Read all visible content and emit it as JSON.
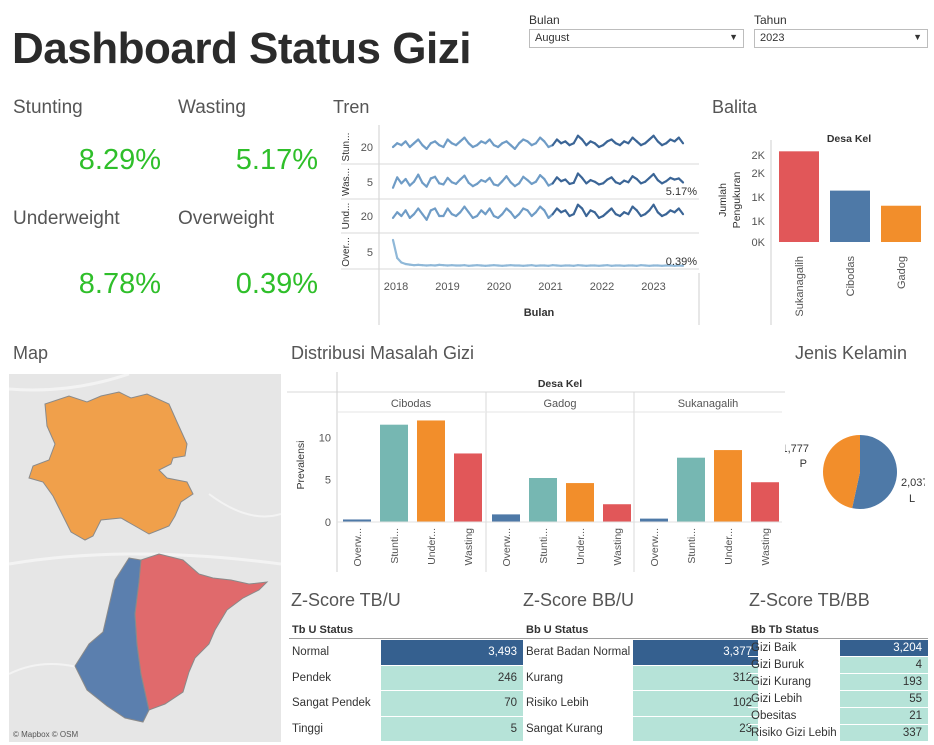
{
  "title": "Dashboard Status Gizi",
  "filters": {
    "bulan_label": "Bulan",
    "bulan_value": "August",
    "tahun_label": "Tahun",
    "tahun_value": "2023"
  },
  "kpis": {
    "stunting_label": "Stunting",
    "stunting_value": "8.29%",
    "wasting_label": "Wasting",
    "wasting_value": "5.17%",
    "underweight_label": "Underweight",
    "underweight_value": "8.78%",
    "overweight_label": "Overweight",
    "overweight_value": "0.39%"
  },
  "colors": {
    "kpi_green": "#2fbf2a",
    "cibodas_blue": "#4e79a7",
    "gadog_orange": "#f28e2b",
    "sukanagalih_red": "#e15759",
    "teal": "#76b7b2",
    "table_dark": "#35608f",
    "table_light": "#b6e3d8"
  },
  "tren": {
    "title": "Tren",
    "rows": [
      {
        "label": "Stun...",
        "tick": "20",
        "end_label": ""
      },
      {
        "label": "Was...",
        "tick": "5",
        "end_label": "5.17%"
      },
      {
        "label": "Und...",
        "tick": "20",
        "end_label": ""
      },
      {
        "label": "Over...",
        "tick": "5",
        "end_label": "0.39%"
      }
    ],
    "x_ticks": [
      "2018",
      "2019",
      "2020",
      "2021",
      "2022",
      "2023"
    ],
    "xlabel": "Bulan"
  },
  "balita": {
    "title": "Balita",
    "header": "Desa Kel",
    "ylabel_1": "Jumlah",
    "ylabel_2": "Pengukuran",
    "y_ticks": [
      "2K",
      "2K",
      "1K",
      "1K",
      "0K"
    ]
  },
  "map": {
    "title": "Map",
    "attribution": "© Mapbox  © OSM"
  },
  "distribusi": {
    "title": "Distribusi Masalah Gizi",
    "header": "Desa Kel",
    "ylabel": "Prevalensi",
    "y_ticks": [
      "10",
      "5",
      "0"
    ],
    "panels": [
      "Cibodas",
      "Gadog",
      "Sukanagalih"
    ],
    "x_labels": [
      "Overw...",
      "Stunti...",
      "Under...",
      "Wasting"
    ]
  },
  "jenis_kelamin": {
    "title": "Jenis Kelamin",
    "p_value": "1,777",
    "p_label": "P",
    "l_value": "2,037",
    "l_label": "L"
  },
  "chart_data": [
    {
      "type": "line",
      "title": "Tren",
      "xlabel": "Bulan",
      "x_range": [
        "2018",
        "2023"
      ],
      "series": [
        {
          "name": "Stun...",
          "values": [
            18,
            20,
            19,
            21,
            18,
            20,
            22,
            19,
            17,
            20,
            21,
            19,
            18,
            22,
            20,
            19,
            21,
            23,
            20,
            18,
            19,
            21,
            20,
            22,
            19,
            18,
            20,
            21,
            19,
            17,
            20,
            22,
            21,
            19,
            20,
            23,
            21,
            18,
            19,
            22,
            20,
            21,
            19,
            20,
            24,
            22,
            19,
            21,
            20,
            18,
            19,
            21,
            22,
            20,
            19,
            21,
            20,
            23,
            21,
            19,
            20,
            22,
            24,
            21,
            19,
            20,
            22,
            21,
            23,
            20
          ]
        },
        {
          "name": "Was...",
          "values": [
            4.2,
            6.1,
            5.0,
            5.8,
            4.6,
            5.3,
            6.6,
            5.1,
            4.4,
            5.9,
            6.2,
            5.0,
            4.8,
            6.0,
            5.2,
            4.9,
            5.7,
            6.4,
            5.1,
            4.5,
            4.9,
            5.6,
            5.3,
            6.0,
            4.8,
            4.6,
            5.4,
            6.3,
            5.2,
            4.5,
            5.0,
            6.2,
            5.6,
            4.9,
            5.3,
            6.5,
            5.8,
            4.6,
            5.0,
            6.1,
            5.4,
            5.7,
            4.9,
            5.1,
            6.8,
            6.0,
            5.0,
            5.6,
            5.3,
            4.8,
            5.0,
            5.7,
            6.1,
            5.2,
            4.9,
            5.5,
            5.2,
            6.3,
            5.8,
            5.0,
            5.3,
            6.0,
            6.7,
            5.6,
            5.0,
            5.4,
            6.0,
            5.7,
            5.9,
            5.17
          ]
        },
        {
          "name": "Und...",
          "values": [
            17,
            20,
            18,
            21,
            17,
            19,
            22,
            19,
            16,
            21,
            22,
            18,
            18,
            22,
            19,
            18,
            20,
            23,
            20,
            17,
            18,
            21,
            19,
            22,
            18,
            17,
            19,
            22,
            20,
            17,
            19,
            22,
            21,
            18,
            20,
            23,
            21,
            17,
            19,
            22,
            20,
            21,
            18,
            19,
            24,
            22,
            18,
            21,
            20,
            17,
            18,
            20,
            22,
            19,
            18,
            20,
            19,
            23,
            21,
            18,
            19,
            21,
            24,
            20,
            18,
            19,
            21,
            20,
            22,
            19
          ]
        },
        {
          "name": "Over...",
          "values": [
            9,
            3,
            1.5,
            1,
            0.8,
            0.6,
            0.7,
            0.6,
            0.5,
            0.6,
            0.5,
            0.7,
            0.6,
            0.5,
            0.6,
            0.5,
            0.5,
            0.6,
            0.4,
            0.5,
            0.6,
            0.5,
            0.4,
            0.5,
            0.6,
            0.5,
            0.4,
            0.5,
            0.6,
            0.5,
            0.5,
            0.4,
            0.5,
            0.6,
            0.4,
            0.5,
            0.5,
            0.4,
            0.6,
            0.5,
            0.4,
            0.5,
            0.5,
            0.4,
            0.6,
            0.5,
            0.4,
            0.5,
            0.5,
            0.4,
            0.5,
            0.6,
            0.4,
            0.5,
            0.5,
            0.4,
            0.5,
            0.5,
            0.4,
            0.6,
            0.5,
            0.4,
            0.5,
            0.5,
            0.4,
            0.5,
            0.5,
            0.4,
            0.5,
            0.39
          ]
        }
      ]
    },
    {
      "type": "bar",
      "title": "Balita",
      "categories": [
        "Sukanagalih",
        "Cibodas",
        "Gadog"
      ],
      "values": [
        2100,
        1190,
        840
      ],
      "ylabel": "Jumlah Pengukuran",
      "ylim": [
        0,
        2200
      ]
    },
    {
      "type": "bar",
      "title": "Distribusi Masalah Gizi",
      "panels": [
        "Cibodas",
        "Gadog",
        "Sukanagalih"
      ],
      "categories": [
        "Overw...",
        "Stunti...",
        "Under...",
        "Wasting"
      ],
      "series": [
        {
          "name": "Cibodas",
          "values": [
            0.3,
            11.5,
            12.0,
            8.1
          ]
        },
        {
          "name": "Gadog",
          "values": [
            0.9,
            5.2,
            4.6,
            2.1
          ]
        },
        {
          "name": "Sukanagalih",
          "values": [
            0.4,
            7.6,
            8.5,
            4.7
          ]
        }
      ],
      "ylabel": "Prevalensi",
      "ylim": [
        0,
        13
      ]
    },
    {
      "type": "pie",
      "title": "Jenis Kelamin",
      "categories": [
        "P",
        "L"
      ],
      "values": [
        1777,
        2037
      ]
    },
    {
      "type": "table",
      "title": "Z-Score TB/U",
      "header": "Tb U Status",
      "rows": [
        {
          "label": "Normal",
          "value": 3493,
          "display": "3,493"
        },
        {
          "label": "Pendek",
          "value": 246,
          "display": "246"
        },
        {
          "label": "Sangat Pendek",
          "value": 70,
          "display": "70"
        },
        {
          "label": "Tinggi",
          "value": 5,
          "display": "5"
        }
      ]
    },
    {
      "type": "table",
      "title": "Z-Score BB/U",
      "header": "Bb U Status",
      "rows": [
        {
          "label": "Berat Badan Normal",
          "value": 3377,
          "display": "3,377"
        },
        {
          "label": "Kurang",
          "value": 312,
          "display": "312"
        },
        {
          "label": "Risiko Lebih",
          "value": 102,
          "display": "102"
        },
        {
          "label": "Sangat Kurang",
          "value": 23,
          "display": "23"
        }
      ]
    },
    {
      "type": "table",
      "title": "Z-Score TB/BB",
      "header": "Bb Tb Status",
      "rows": [
        {
          "label": "Gizi Baik",
          "value": 3204,
          "display": "3,204"
        },
        {
          "label": "Gizi Buruk",
          "value": 4,
          "display": "4"
        },
        {
          "label": "Gizi Kurang",
          "value": 193,
          "display": "193"
        },
        {
          "label": "Gizi Lebih",
          "value": 55,
          "display": "55"
        },
        {
          "label": "Obesitas",
          "value": 21,
          "display": "21"
        },
        {
          "label": "Risiko Gizi Lebih",
          "value": 337,
          "display": "337"
        }
      ]
    }
  ]
}
